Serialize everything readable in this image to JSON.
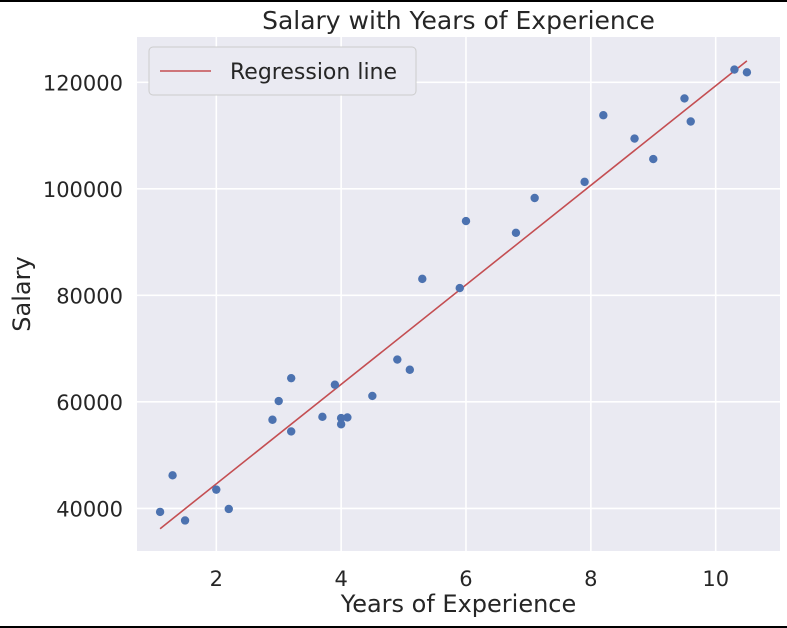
{
  "chart_data": {
    "type": "scatter",
    "title": "Salary with Years of Experience",
    "xlabel": "Years of Experience",
    "ylabel": "Salary",
    "xlim": [
      0.73,
      11.03
    ],
    "ylim": [
      32000,
      128500
    ],
    "xticks": [
      2,
      4,
      6,
      8,
      10
    ],
    "yticks": [
      40000,
      60000,
      80000,
      100000,
      120000
    ],
    "grid": true,
    "legend": {
      "position": "top-left",
      "entries": [
        "Regression line"
      ]
    },
    "colors": {
      "points": "#4c72b0",
      "line": "#c44e52",
      "background": "#eaeaf2",
      "grid": "#ffffff"
    },
    "points": [
      {
        "x": 1.1,
        "y": 39343
      },
      {
        "x": 1.3,
        "y": 46205
      },
      {
        "x": 1.5,
        "y": 37731
      },
      {
        "x": 2.0,
        "y": 43525
      },
      {
        "x": 2.2,
        "y": 39891
      },
      {
        "x": 2.9,
        "y": 56642
      },
      {
        "x": 3.0,
        "y": 60150
      },
      {
        "x": 3.2,
        "y": 54445
      },
      {
        "x": 3.2,
        "y": 64445
      },
      {
        "x": 3.7,
        "y": 57189
      },
      {
        "x": 3.9,
        "y": 63218
      },
      {
        "x": 4.0,
        "y": 55794
      },
      {
        "x": 4.0,
        "y": 56957
      },
      {
        "x": 4.1,
        "y": 57081
      },
      {
        "x": 4.5,
        "y": 61111
      },
      {
        "x": 4.9,
        "y": 67938
      },
      {
        "x": 5.1,
        "y": 66029
      },
      {
        "x": 5.3,
        "y": 83088
      },
      {
        "x": 5.9,
        "y": 81363
      },
      {
        "x": 6.0,
        "y": 93940
      },
      {
        "x": 6.8,
        "y": 91738
      },
      {
        "x": 7.1,
        "y": 98273
      },
      {
        "x": 7.9,
        "y": 101302
      },
      {
        "x": 8.2,
        "y": 113812
      },
      {
        "x": 8.7,
        "y": 109431
      },
      {
        "x": 9.0,
        "y": 105582
      },
      {
        "x": 9.5,
        "y": 116969
      },
      {
        "x": 9.6,
        "y": 112635
      },
      {
        "x": 10.3,
        "y": 122391
      },
      {
        "x": 10.5,
        "y": 121872
      }
    ],
    "regression_line": {
      "name": "Regression line",
      "x": [
        1.1,
        10.5
      ],
      "y": [
        36188,
        124017
      ]
    }
  }
}
